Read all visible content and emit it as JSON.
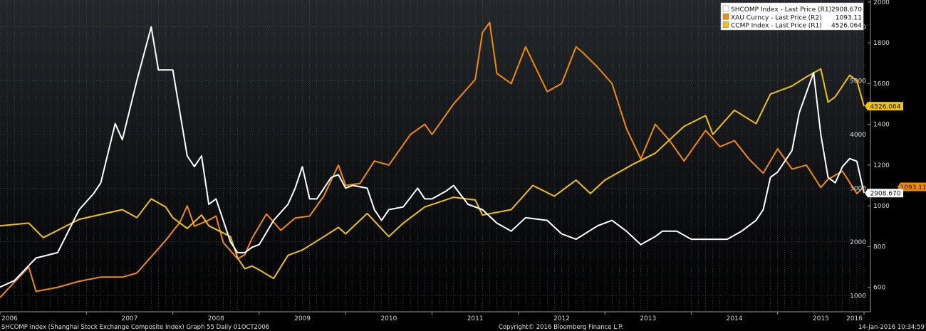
{
  "chart_data": {
    "type": "line",
    "x_range": [
      "2006-01",
      "2016-01"
    ],
    "x_ticks": [
      "2006",
      "2007",
      "2008",
      "2009",
      "2010",
      "2011",
      "2012",
      "2013",
      "2014",
      "2015",
      "2016"
    ],
    "grid": true,
    "legend_position": "top-right",
    "axes": {
      "R1": {
        "ticks": [
          1000,
          2000,
          3000,
          4000,
          5000,
          6000
        ],
        "range": [
          700,
          6500
        ]
      },
      "R2": {
        "ticks": [
          600,
          800,
          1000,
          1200,
          1400,
          1600,
          1800,
          2000
        ],
        "range": [
          480,
          2010
        ]
      }
    },
    "series": [
      {
        "name": "SHCOMP Index - Last Price (R1)",
        "axis": "R1",
        "color": "#ffffff",
        "last_value": "2908.670",
        "points": [
          [
            "2006-01",
            1160
          ],
          [
            "2006-03",
            1280
          ],
          [
            "2006-06",
            1700
          ],
          [
            "2006-09",
            1800
          ],
          [
            "2006-12",
            2600
          ],
          [
            "2007-02",
            2900
          ],
          [
            "2007-03",
            3100
          ],
          [
            "2007-05",
            4200
          ],
          [
            "2007-06",
            3900
          ],
          [
            "2007-08",
            5000
          ],
          [
            "2007-10",
            6000
          ],
          [
            "2007-11",
            5200
          ],
          [
            "2007-12",
            5200
          ],
          [
            "2008-01",
            5200
          ],
          [
            "2008-02",
            4400
          ],
          [
            "2008-03",
            3600
          ],
          [
            "2008-04",
            3400
          ],
          [
            "2008-05",
            3600
          ],
          [
            "2008-06",
            2700
          ],
          [
            "2008-07",
            2800
          ],
          [
            "2008-09",
            2000
          ],
          [
            "2008-10",
            1800
          ],
          [
            "2008-11",
            1800
          ],
          [
            "2008-12",
            1900
          ],
          [
            "2009-01",
            1950
          ],
          [
            "2009-03",
            2400
          ],
          [
            "2009-05",
            2700
          ],
          [
            "2009-06",
            3000
          ],
          [
            "2009-07",
            3400
          ],
          [
            "2009-08",
            2800
          ],
          [
            "2009-09",
            2800
          ],
          [
            "2009-11",
            3200
          ],
          [
            "2009-12",
            3250
          ],
          [
            "2010-01",
            3000
          ],
          [
            "2010-02",
            3050
          ],
          [
            "2010-04",
            3000
          ],
          [
            "2010-05",
            2600
          ],
          [
            "2010-06",
            2400
          ],
          [
            "2010-07",
            2600
          ],
          [
            "2010-09",
            2650
          ],
          [
            "2010-11",
            3000
          ],
          [
            "2010-12",
            2800
          ],
          [
            "2011-01",
            2800
          ],
          [
            "2011-03",
            2950
          ],
          [
            "2011-04",
            3050
          ],
          [
            "2011-06",
            2700
          ],
          [
            "2011-08",
            2600
          ],
          [
            "2011-10",
            2350
          ],
          [
            "2011-12",
            2200
          ],
          [
            "2012-02",
            2450
          ],
          [
            "2012-05",
            2400
          ],
          [
            "2012-07",
            2150
          ],
          [
            "2012-09",
            2050
          ],
          [
            "2012-12",
            2300
          ],
          [
            "2013-02",
            2400
          ],
          [
            "2013-04",
            2200
          ],
          [
            "2013-06",
            1950
          ],
          [
            "2013-08",
            2100
          ],
          [
            "2013-09",
            2200
          ],
          [
            "2013-11",
            2200
          ],
          [
            "2014-01",
            2050
          ],
          [
            "2014-03",
            2050
          ],
          [
            "2014-06",
            2050
          ],
          [
            "2014-08",
            2200
          ],
          [
            "2014-10",
            2400
          ],
          [
            "2014-11",
            2600
          ],
          [
            "2014-12",
            3200
          ],
          [
            "2015-01",
            3300
          ],
          [
            "2015-03",
            3700
          ],
          [
            "2015-04",
            4400
          ],
          [
            "2015-06",
            5150
          ],
          [
            "2015-07",
            4000
          ],
          [
            "2015-08",
            3200
          ],
          [
            "2015-09",
            3100
          ],
          [
            "2015-10",
            3400
          ],
          [
            "2015-11",
            3550
          ],
          [
            "2015-12",
            3500
          ],
          [
            "2016-01",
            2908.67
          ]
        ]
      },
      {
        "name": "XAU Curncy - Last Price (R2)",
        "axis": "R2",
        "color": "#f28c00",
        "last_value": "1093.11",
        "points": [
          [
            "2006-01",
            550
          ],
          [
            "2006-05",
            700
          ],
          [
            "2006-06",
            580
          ],
          [
            "2006-09",
            600
          ],
          [
            "2006-12",
            630
          ],
          [
            "2007-03",
            650
          ],
          [
            "2007-06",
            650
          ],
          [
            "2007-08",
            670
          ],
          [
            "2007-10",
            750
          ],
          [
            "2007-12",
            830
          ],
          [
            "2008-02",
            920
          ],
          [
            "2008-03",
            1000
          ],
          [
            "2008-04",
            900
          ],
          [
            "2008-06",
            930
          ],
          [
            "2008-07",
            950
          ],
          [
            "2008-08",
            820
          ],
          [
            "2008-10",
            740
          ],
          [
            "2008-11",
            760
          ],
          [
            "2008-12",
            840
          ],
          [
            "2009-02",
            960
          ],
          [
            "2009-04",
            880
          ],
          [
            "2009-06",
            940
          ],
          [
            "2009-08",
            950
          ],
          [
            "2009-10",
            1050
          ],
          [
            "2009-12",
            1200
          ],
          [
            "2010-01",
            1100
          ],
          [
            "2010-03",
            1110
          ],
          [
            "2010-05",
            1220
          ],
          [
            "2010-07",
            1200
          ],
          [
            "2010-10",
            1350
          ],
          [
            "2010-12",
            1400
          ],
          [
            "2011-01",
            1350
          ],
          [
            "2011-04",
            1500
          ],
          [
            "2011-07",
            1620
          ],
          [
            "2011-08",
            1850
          ],
          [
            "2011-09",
            1900
          ],
          [
            "2011-10",
            1650
          ],
          [
            "2011-12",
            1600
          ],
          [
            "2012-02",
            1780
          ],
          [
            "2012-05",
            1560
          ],
          [
            "2012-07",
            1600
          ],
          [
            "2012-09",
            1780
          ],
          [
            "2012-10",
            1750
          ],
          [
            "2012-12",
            1680
          ],
          [
            "2013-02",
            1600
          ],
          [
            "2013-04",
            1380
          ],
          [
            "2013-06",
            1230
          ],
          [
            "2013-08",
            1400
          ],
          [
            "2013-10",
            1320
          ],
          [
            "2013-12",
            1220
          ],
          [
            "2014-03",
            1370
          ],
          [
            "2014-05",
            1290
          ],
          [
            "2014-07",
            1320
          ],
          [
            "2014-09",
            1230
          ],
          [
            "2014-11",
            1160
          ],
          [
            "2015-01",
            1280
          ],
          [
            "2015-03",
            1180
          ],
          [
            "2015-05",
            1200
          ],
          [
            "2015-07",
            1090
          ],
          [
            "2015-08",
            1130
          ],
          [
            "2015-10",
            1170
          ],
          [
            "2015-12",
            1060
          ],
          [
            "2016-01",
            1093.11
          ]
        ]
      },
      {
        "name": "CCMP Index - Last Price (R1)",
        "axis": "R1",
        "color": "#f0c300",
        "last_value": "4526.064",
        "points": [
          [
            "2006-01",
            2300
          ],
          [
            "2006-05",
            2350
          ],
          [
            "2006-07",
            2080
          ],
          [
            "2006-12",
            2420
          ],
          [
            "2007-06",
            2600
          ],
          [
            "2007-08",
            2450
          ],
          [
            "2007-10",
            2800
          ],
          [
            "2007-12",
            2650
          ],
          [
            "2008-01",
            2450
          ],
          [
            "2008-03",
            2250
          ],
          [
            "2008-05",
            2500
          ],
          [
            "2008-06",
            2300
          ],
          [
            "2008-09",
            2100
          ],
          [
            "2008-10",
            1700
          ],
          [
            "2008-11",
            1500
          ],
          [
            "2008-12",
            1550
          ],
          [
            "2009-01",
            1480
          ],
          [
            "2009-03",
            1320
          ],
          [
            "2009-05",
            1750
          ],
          [
            "2009-07",
            1850
          ],
          [
            "2009-10",
            2100
          ],
          [
            "2009-12",
            2270
          ],
          [
            "2010-01",
            2150
          ],
          [
            "2010-04",
            2530
          ],
          [
            "2010-07",
            2100
          ],
          [
            "2010-09",
            2350
          ],
          [
            "2010-12",
            2650
          ],
          [
            "2011-04",
            2830
          ],
          [
            "2011-07",
            2780
          ],
          [
            "2011-08",
            2500
          ],
          [
            "2011-10",
            2550
          ],
          [
            "2011-12",
            2600
          ],
          [
            "2012-03",
            3050
          ],
          [
            "2012-06",
            2850
          ],
          [
            "2012-09",
            3150
          ],
          [
            "2012-11",
            2900
          ],
          [
            "2013-01",
            3150
          ],
          [
            "2013-05",
            3450
          ],
          [
            "2013-08",
            3650
          ],
          [
            "2013-10",
            3900
          ],
          [
            "2013-12",
            4150
          ],
          [
            "2014-03",
            4350
          ],
          [
            "2014-04",
            4000
          ],
          [
            "2014-07",
            4450
          ],
          [
            "2014-10",
            4200
          ],
          [
            "2014-12",
            4750
          ],
          [
            "2015-03",
            4900
          ],
          [
            "2015-05",
            5070
          ],
          [
            "2015-07",
            5220
          ],
          [
            "2015-08",
            4600
          ],
          [
            "2015-09",
            4700
          ],
          [
            "2015-11",
            5100
          ],
          [
            "2015-12",
            5000
          ],
          [
            "2016-01",
            4526.064
          ]
        ]
      }
    ]
  },
  "footer": {
    "left": "SHCOMP Index (Shanghai Stock Exchange Composite Index) Graph 55  Daily 01OCT2006",
    "center": "Copyright© 2016 Bloomberg Finance L.P.",
    "right": "14-Jan-2016 10:34:59"
  },
  "colors": {
    "background_top": "#24282c",
    "background_bottom": "#000000",
    "grid": "#59606a",
    "text": "#d8d8d8"
  }
}
